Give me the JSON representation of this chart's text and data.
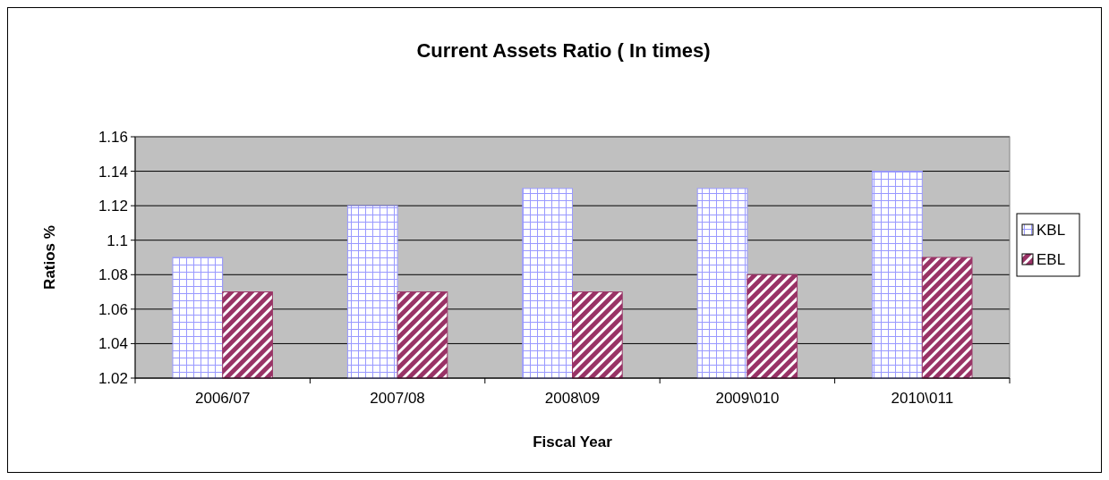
{
  "chart_data": {
    "type": "bar",
    "title": "Current Assets Ratio ( In times)",
    "xlabel": "Fiscal Year",
    "ylabel": "Ratios %",
    "categories": [
      "2006/07",
      "2007/08",
      "2008\\09",
      "2009\\010",
      "2010\\011"
    ],
    "series": [
      {
        "name": "KBL",
        "color": "#9999ff",
        "values": [
          1.09,
          1.12,
          1.13,
          1.13,
          1.14
        ]
      },
      {
        "name": "EBL",
        "color": "#993366",
        "values": [
          1.07,
          1.07,
          1.07,
          1.08,
          1.09
        ]
      }
    ],
    "ylim": [
      1.02,
      1.16
    ],
    "yticks": [
      1.02,
      1.04,
      1.06,
      1.08,
      1.1,
      1.12,
      1.14,
      1.16
    ],
    "grid": "y",
    "legend": "right"
  }
}
